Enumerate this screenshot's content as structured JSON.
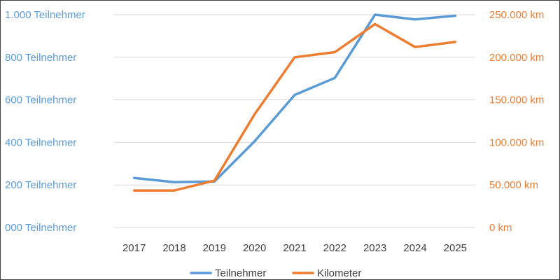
{
  "chart_data": {
    "type": "line",
    "categories": [
      "2017",
      "2018",
      "2019",
      "2020",
      "2021",
      "2022",
      "2023",
      "2024",
      "2025"
    ],
    "series": [
      {
        "name": "Teilnehmer",
        "axis": "left",
        "color": "#5b9bd5",
        "values": [
          233,
          213,
          216,
          405,
          623,
          703,
          1000,
          978,
          995
        ]
      },
      {
        "name": "Kilometer",
        "axis": "right",
        "color": "#ed7d31",
        "values": [
          43500,
          43500,
          55000,
          133000,
          200000,
          206000,
          239000,
          212000,
          218000
        ]
      }
    ],
    "y_left": {
      "range": [
        0,
        1000
      ],
      "ticks": [
        0,
        200,
        400,
        600,
        800,
        1000
      ],
      "tick_labels": [
        "000 Teilnehmer",
        "200 Teilnehmer",
        "400 Teilnehmer",
        "600 Teilnehmer",
        "800 Teilnehmer",
        "1.000 Teilnehmer"
      ],
      "color": "#5b9bd5"
    },
    "y_right": {
      "range": [
        0,
        250000
      ],
      "ticks": [
        0,
        50000,
        100000,
        150000,
        200000,
        250000
      ],
      "tick_labels": [
        "0 km",
        "50.000 km",
        "100.000 km",
        "150.000 km",
        "200.000 km",
        "250.000 km"
      ],
      "color": "#ed7d31"
    },
    "grid": true,
    "legend": "bottom",
    "title": "",
    "xlabel": "",
    "ylabel": ""
  }
}
